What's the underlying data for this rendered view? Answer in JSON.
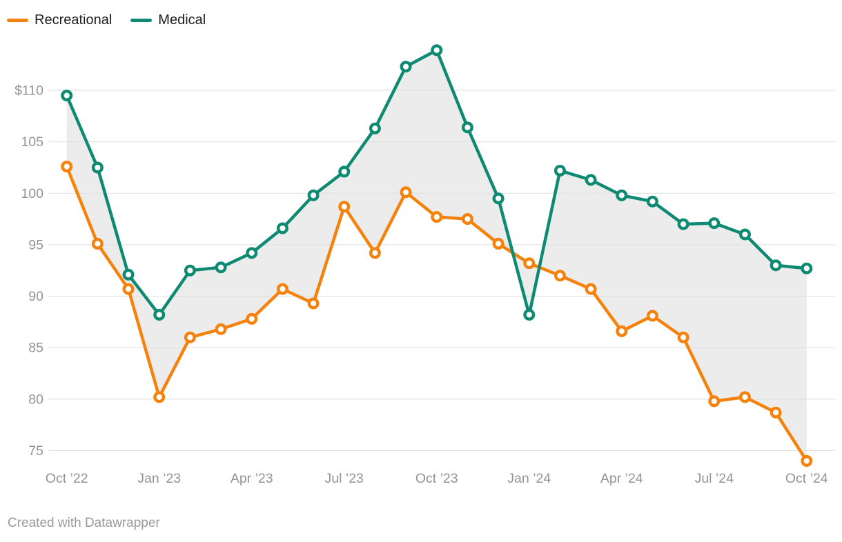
{
  "footer": {
    "attribution": "Created with Datawrapper"
  },
  "chart_data": {
    "type": "line",
    "title": "",
    "x_labels": [
      "Oct ’22",
      "Nov ’22",
      "Dec ’22",
      "Jan ’23",
      "Feb ’23",
      "Mar ’23",
      "Apr ’23",
      "May ’23",
      "Jun ’23",
      "Jul ’23",
      "Aug ’23",
      "Sep ’23",
      "Oct ’23",
      "Nov ’23",
      "Dec ’23",
      "Jan ’24",
      "Feb ’24",
      "Mar ’24",
      "Apr ’24",
      "May ’24",
      "Jun ’24",
      "Jul ’24",
      "Aug ’24",
      "Sep ’24",
      "Oct ’24"
    ],
    "series": [
      {
        "name": "Recreational",
        "color": "#f5820d",
        "values": [
          102.6,
          95.1,
          90.7,
          80.2,
          86.0,
          86.8,
          87.8,
          90.7,
          89.3,
          98.7,
          94.2,
          100.1,
          97.7,
          97.5,
          95.1,
          93.2,
          92.0,
          90.7,
          86.6,
          88.1,
          86.0,
          79.8,
          80.2,
          78.7,
          74.0
        ]
      },
      {
        "name": "Medical",
        "color": "#0e8a73",
        "values": [
          109.5,
          102.5,
          92.1,
          88.2,
          92.5,
          92.8,
          94.2,
          96.6,
          99.8,
          102.1,
          106.3,
          112.3,
          113.9,
          106.4,
          99.5,
          88.2,
          102.2,
          101.3,
          99.8,
          99.2,
          97.0,
          97.1,
          96.0,
          93.0,
          92.7
        ]
      }
    ],
    "y_axis": {
      "ticks": [
        110,
        105,
        100,
        95,
        90,
        85,
        80,
        75
      ],
      "tick_labels": [
        "$110",
        "105",
        "100",
        "95",
        "90",
        "85",
        "80",
        "75"
      ],
      "unit_prefix": "$"
    },
    "x_axis": {
      "tick_indices": [
        0,
        3,
        6,
        9,
        12,
        15,
        18,
        21,
        24
      ],
      "tick_labels": [
        "Oct ’22",
        "Jan ’23",
        "Apr ’23",
        "Jul ’23",
        "Oct ’23",
        "Jan ’24",
        "Apr ’24",
        "Jul ’24",
        "Oct ’24"
      ]
    },
    "ylim": [
      75,
      110
    ],
    "grid": true,
    "legend_position": "top-left",
    "band_fill_between_series": true,
    "band_color": "#ececec",
    "grid_color": "#dedede",
    "axis_text_color": "#949494",
    "legend_text_color": "#1d1d1d",
    "background": "#ffffff"
  }
}
